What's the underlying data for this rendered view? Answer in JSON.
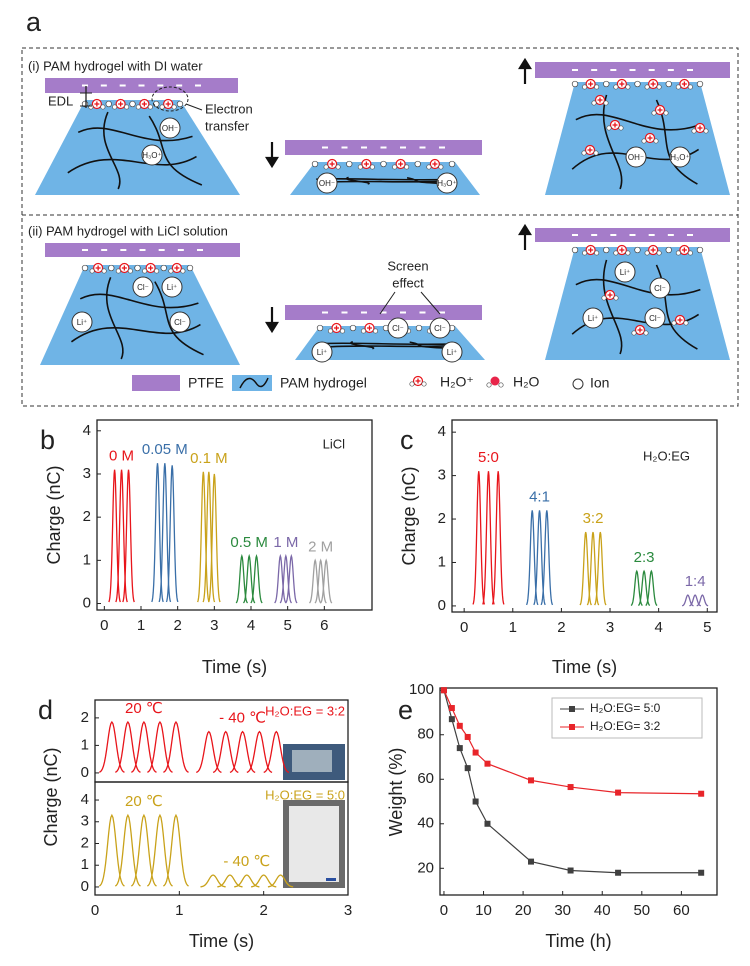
{
  "panel_a": {
    "label": "a",
    "row_i": {
      "title": "(i) PAM hydrogel with DI water",
      "edl": "EDL",
      "electron_transfer": [
        "Electron",
        "transfer"
      ]
    },
    "row_ii": {
      "title": "(ii) PAM hydrogel with LiCl solution",
      "screen_effect": [
        "Screen",
        "effect"
      ]
    },
    "ions": {
      "oh": "OH⁻",
      "h3o": "H₃O⁺",
      "cl": "Cl⁻",
      "li": "Li⁺"
    },
    "legend": [
      "PTFE",
      "PAM hydrogel",
      "H₂O⁺",
      "H₂O",
      "Ion"
    ]
  },
  "chart_data": [
    {
      "type": "pulse",
      "panel": "b",
      "annotation": "LiCl",
      "xlabel": "Time (s)",
      "ylabel": "Charge (nC)",
      "xlim": [
        -0.2,
        7.3
      ],
      "xticks": [
        0,
        1,
        2,
        3,
        4,
        5,
        6
      ],
      "ylim": [
        -0.15,
        4.25
      ],
      "yticks": [
        0,
        1,
        2,
        3,
        4
      ],
      "series": [
        {
          "name": "0 M",
          "color": "#e8151b",
          "x": [
            0.28,
            0.47,
            0.66
          ],
          "values": [
            3.1,
            3.1,
            3.1
          ]
        },
        {
          "name": "0.05 M",
          "color": "#3a6fa8",
          "x": [
            1.45,
            1.65,
            1.85
          ],
          "values": [
            3.25,
            3.25,
            3.2
          ]
        },
        {
          "name": "0.1 M",
          "color": "#c9a21a",
          "x": [
            2.7,
            2.85,
            3.0
          ],
          "values": [
            3.05,
            3.05,
            3.0
          ]
        },
        {
          "name": "0.5 M",
          "color": "#2b8a3e",
          "x": [
            3.75,
            3.95,
            4.15
          ],
          "values": [
            1.1,
            1.1,
            1.1
          ]
        },
        {
          "name": "1 M",
          "color": "#7b68a8",
          "x": [
            4.8,
            4.95,
            5.1
          ],
          "values": [
            1.1,
            1.1,
            1.1
          ]
        },
        {
          "name": "2 M",
          "color": "#a0a0a0",
          "x": [
            5.75,
            5.9,
            6.05
          ],
          "values": [
            1.0,
            1.0,
            1.0
          ]
        }
      ]
    },
    {
      "type": "pulse",
      "panel": "c",
      "annotation": "H₂O:EG",
      "xlabel": "Time (s)",
      "ylabel": "Charge (nC)",
      "xlim": [
        -0.25,
        5.2
      ],
      "xticks": [
        0,
        1,
        2,
        3,
        4,
        5
      ],
      "ylim": [
        -0.14,
        4.28
      ],
      "yticks": [
        0,
        1,
        2,
        3,
        4
      ],
      "series": [
        {
          "name": "5:0",
          "color": "#e8151b",
          "x": [
            0.3,
            0.5,
            0.7
          ],
          "values": [
            3.1,
            3.1,
            3.1
          ]
        },
        {
          "name": "4:1",
          "color": "#3a6fa8",
          "x": [
            1.4,
            1.55,
            1.7
          ],
          "values": [
            2.2,
            2.2,
            2.2
          ]
        },
        {
          "name": "3:2",
          "color": "#c9a21a",
          "x": [
            2.5,
            2.65,
            2.8
          ],
          "values": [
            1.7,
            1.7,
            1.7
          ]
        },
        {
          "name": "2:3",
          "color": "#2b8a3e",
          "x": [
            3.55,
            3.7,
            3.85
          ],
          "values": [
            0.8,
            0.8,
            0.8
          ]
        },
        {
          "name": "1:4",
          "color": "#7b68a8",
          "x": [
            4.6,
            4.75,
            4.9
          ],
          "values": [
            0.25,
            0.25,
            0.25
          ]
        }
      ]
    },
    {
      "type": "pulse",
      "panel": "d",
      "annotation": "H₂O:EG = 3:2",
      "annotation_color": "#e8151b",
      "ylabel": "Charge (nC)",
      "xlim": [
        0,
        3
      ],
      "ylim": [
        -0.33,
        2.65
      ],
      "yticks": [
        0,
        1,
        2
      ],
      "series": [
        {
          "name": "20 ℃",
          "color": "#e8151b",
          "x": [
            0.2,
            0.39,
            0.58,
            0.77,
            0.96
          ],
          "values": [
            1.85,
            1.85,
            1.85,
            1.85,
            1.85
          ]
        },
        {
          "name": "- 40 ℃",
          "color": "#e8151b",
          "x": [
            1.35,
            1.55,
            1.75,
            1.95,
            2.15
          ],
          "values": [
            1.5,
            1.5,
            1.5,
            1.5,
            1.5
          ]
        }
      ]
    },
    {
      "type": "pulse",
      "annotation": "H₂O:EG = 5:0",
      "annotation_color": "#c9a21a",
      "xlabel": "Time (s)",
      "xlim": [
        0,
        3
      ],
      "xticks": [
        0,
        1,
        2,
        3
      ],
      "ylim": [
        -0.37,
        4.83
      ],
      "yticks": [
        0,
        1,
        2,
        3,
        4
      ],
      "series": [
        {
          "name": "20 ℃",
          "color": "#c9a21a",
          "x": [
            0.2,
            0.39,
            0.58,
            0.77,
            0.96
          ],
          "values": [
            3.3,
            3.3,
            3.3,
            3.3,
            3.3
          ]
        },
        {
          "name": "- 40 ℃",
          "color": "#c9a21a",
          "x": [
            1.4,
            1.6,
            1.8,
            2.0,
            2.2
          ],
          "values": [
            0.55,
            0.55,
            0.55,
            0.55,
            0.55
          ]
        }
      ]
    },
    {
      "type": "line",
      "panel": "e",
      "xlabel": "Time (h)",
      "ylabel": "Weight (%)",
      "legend": "upper right",
      "xlim": [
        -1,
        69
      ],
      "xticks": [
        0,
        10,
        20,
        30,
        40,
        50,
        60
      ],
      "ylim": [
        8,
        101
      ],
      "yticks": [
        20,
        40,
        60,
        80,
        100
      ],
      "series": [
        {
          "name": "H₂O:EG= 5:0",
          "color": "#404040",
          "x": [
            0,
            2,
            4,
            6,
            8,
            11,
            22,
            32,
            44,
            65
          ],
          "values": [
            100,
            87,
            74,
            65,
            50,
            40,
            23,
            19,
            18,
            18
          ]
        },
        {
          "name": "H₂O:EG= 3:2",
          "color": "#e8252a",
          "x": [
            0,
            2,
            4,
            6,
            8,
            11,
            22,
            32,
            44,
            65
          ],
          "values": [
            100,
            92,
            84,
            79,
            72,
            67,
            59.5,
            56.5,
            54,
            53.5
          ]
        }
      ]
    }
  ]
}
